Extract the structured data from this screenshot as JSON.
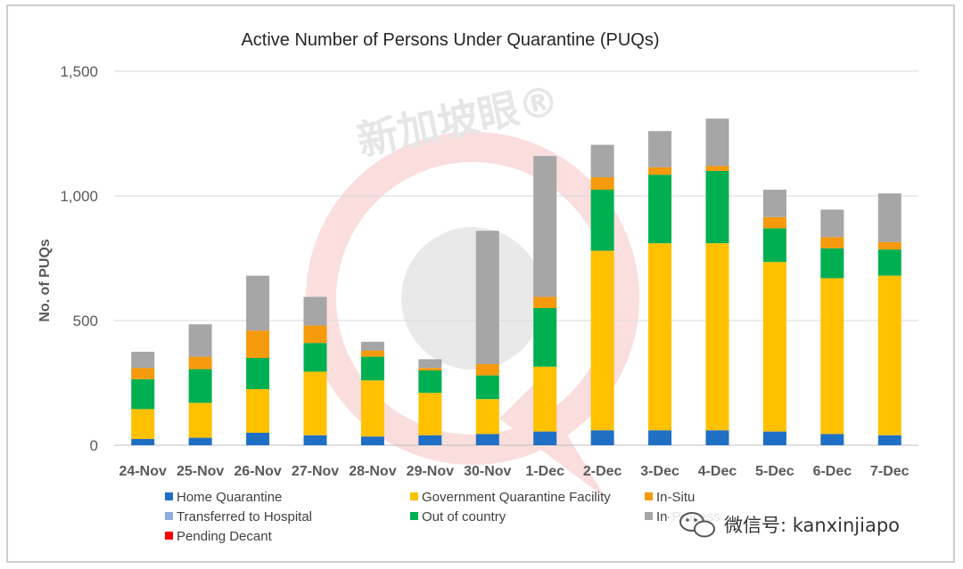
{
  "watermark": {
    "brand": "新加坡眼®",
    "wechat_label": "微信号: kanxinjiapo"
  },
  "chart_data": {
    "type": "bar",
    "stacked": true,
    "title": "Active Number of Persons Under Quarantine (PUQs)",
    "xlabel": "",
    "ylabel": "No. of PUQs",
    "ylim": [
      0,
      1500
    ],
    "yticks": [
      0,
      500,
      1000,
      1500
    ],
    "ytick_labels": [
      "0",
      "500",
      "1,000",
      "1,500"
    ],
    "grid": true,
    "legend_position": "bottom",
    "categories": [
      "24-Nov",
      "25-Nov",
      "26-Nov",
      "27-Nov",
      "28-Nov",
      "29-Nov",
      "30-Nov",
      "1-Dec",
      "2-Dec",
      "3-Dec",
      "4-Dec",
      "5-Dec",
      "6-Dec",
      "7-Dec"
    ],
    "series": [
      {
        "name": "Home  Quarantine",
        "color": "#1f6fc5",
        "values": [
          25,
          30,
          50,
          40,
          35,
          40,
          45,
          55,
          60,
          60,
          60,
          55,
          45,
          40
        ]
      },
      {
        "name": "Transferred to Hospital",
        "color": "#8faadc",
        "values": [
          0,
          0,
          0,
          0,
          0,
          0,
          0,
          0,
          0,
          0,
          0,
          0,
          0,
          0
        ]
      },
      {
        "name": "Pending Decant",
        "color": "#ff0000",
        "values": [
          0,
          0,
          0,
          0,
          0,
          0,
          0,
          0,
          0,
          0,
          0,
          0,
          0,
          0
        ]
      },
      {
        "name": "Government Quarantine Facility",
        "color": "#ffc000",
        "values": [
          120,
          140,
          175,
          255,
          225,
          170,
          140,
          260,
          720,
          750,
          750,
          680,
          625,
          640
        ]
      },
      {
        "name": "Out of country",
        "color": "#00b050",
        "values": [
          120,
          135,
          125,
          115,
          95,
          90,
          95,
          235,
          245,
          275,
          290,
          135,
          120,
          105
        ]
      },
      {
        "name": "In-Situ",
        "color": "#f59a0c",
        "values": [
          45,
          50,
          110,
          70,
          25,
          10,
          45,
          45,
          50,
          30,
          20,
          45,
          45,
          30
        ]
      },
      {
        "name": "In-Process",
        "color": "#a6a6a6",
        "values": [
          65,
          130,
          220,
          115,
          35,
          35,
          535,
          565,
          130,
          145,
          190,
          110,
          110,
          195
        ]
      }
    ],
    "legend_entries": [
      {
        "name": "Home  Quarantine",
        "color": "#1f6fc5"
      },
      {
        "name": "Government Quarantine Facility",
        "color": "#ffc000"
      },
      {
        "name": "In-Situ",
        "color": "#f59a0c"
      },
      {
        "name": "Transferred to Hospital",
        "color": "#8faadc"
      },
      {
        "name": "Out of country",
        "color": "#00b050"
      },
      {
        "name": "In-Process",
        "color": "#a6a6a6"
      },
      {
        "name": "Pending Decant",
        "color": "#ff0000"
      }
    ]
  }
}
